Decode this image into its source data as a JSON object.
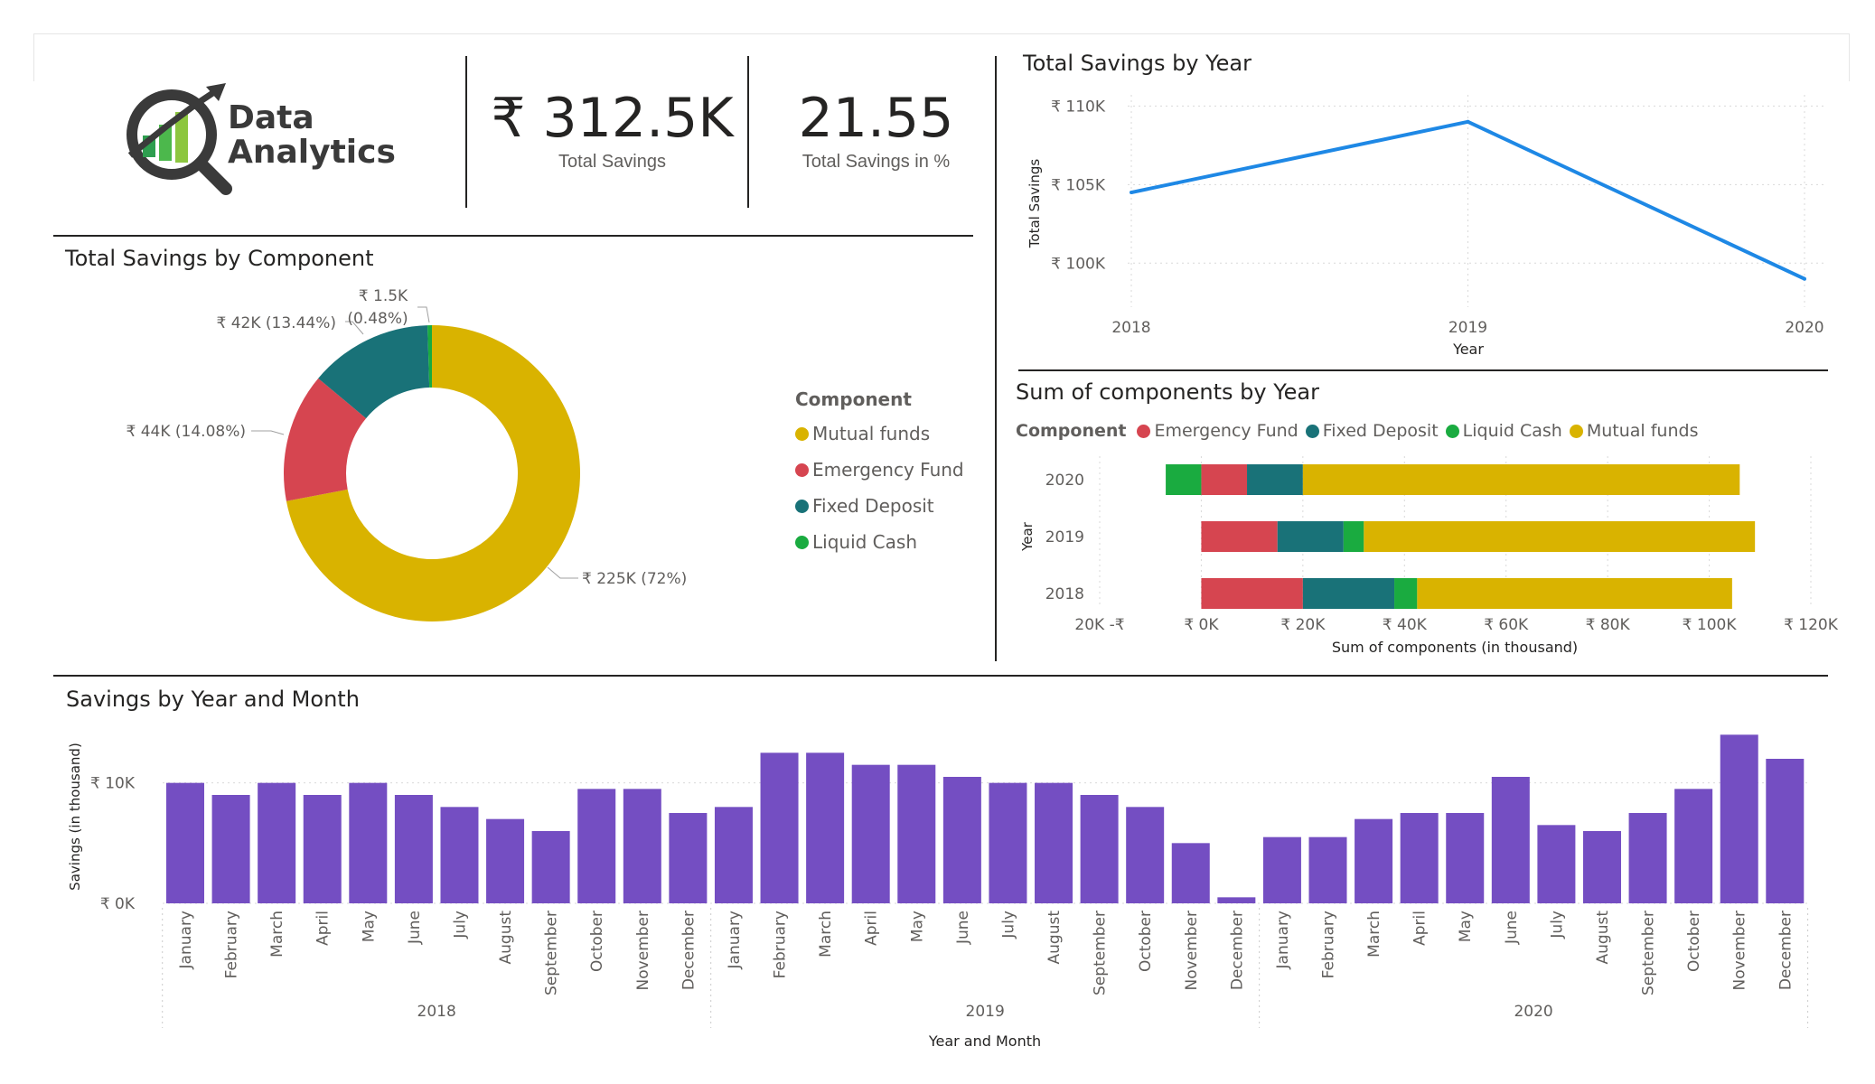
{
  "logo": {
    "line1": "Data",
    "line2": "Analytics"
  },
  "kpis": [
    {
      "value": "₹ 312.5K",
      "label": "Total Savings"
    },
    {
      "value": "21.55",
      "label": "Total Savings in %"
    }
  ],
  "colors": {
    "mutual_funds": "#D9B300",
    "emergency_fund": "#D64550",
    "fixed_deposit": "#197278",
    "liquid_cash": "#1AAB40",
    "line": "#1E88E5",
    "bar": "#744EC2"
  },
  "chart_data": [
    {
      "id": "donut",
      "type": "pie",
      "title": "Total Savings by Component",
      "legend_title": "Component",
      "legend_position": "right",
      "slices": [
        {
          "name": "Mutual funds",
          "value": 225,
          "label": "₹ 225K (72%)",
          "color": "#D9B300"
        },
        {
          "name": "Emergency Fund",
          "value": 44,
          "label": "₹ 44K (14.08%)",
          "color": "#D64550"
        },
        {
          "name": "Fixed Deposit",
          "value": 42,
          "label": "₹ 42K (13.44%)",
          "color": "#197278"
        },
        {
          "name": "Liquid Cash",
          "value": 1.5,
          "label_line1": "₹ 1.5K",
          "label_line2": "(0.48%)",
          "color": "#1AAB40"
        }
      ]
    },
    {
      "id": "line",
      "type": "line",
      "title": "Total Savings by Year",
      "xlabel": "Year",
      "ylabel": "Total Savings",
      "x": [
        "2018",
        "2019",
        "2020"
      ],
      "values": [
        104.5,
        109,
        99
      ],
      "ylim": [
        97.2,
        111
      ],
      "yticks": [
        100,
        105,
        110
      ],
      "ytick_labels": [
        "₹ 100K",
        "₹ 105K",
        "₹ 110K"
      ],
      "grid": true
    },
    {
      "id": "stacked",
      "type": "bar",
      "orientation": "horizontal",
      "stacked": true,
      "title": "Sum of components by Year",
      "legend_title": "Component",
      "legend_position": "top-left",
      "xlabel": "Sum of components (in thousand)",
      "ylabel": "Year",
      "xlim": [
        -20,
        120
      ],
      "xticks": [
        -20,
        0,
        20,
        40,
        60,
        80,
        100,
        120
      ],
      "xtick_labels": [
        "20K -₹",
        "₹ 0K",
        "₹ 20K",
        "₹ 40K",
        "₹ 60K",
        "₹ 80K",
        "₹ 100K",
        "₹ 120K"
      ],
      "categories": [
        "2020",
        "2019",
        "2018"
      ],
      "series": [
        {
          "name": "Emergency Fund",
          "values": [
            9,
            15,
            20
          ],
          "color": "#D64550"
        },
        {
          "name": "Fixed Deposit",
          "values": [
            11,
            13,
            18
          ],
          "color": "#197278"
        },
        {
          "name": "Liquid Cash",
          "values": [
            -7,
            4,
            4.5
          ],
          "color": "#1AAB40"
        },
        {
          "name": "Mutual funds",
          "values": [
            86,
            77,
            62
          ],
          "color": "#D9B300"
        }
      ],
      "grid": true
    },
    {
      "id": "monthly",
      "type": "bar",
      "title": "Savings by Year and Month",
      "xlabel": "Year and Month",
      "ylabel": "Savings (in thousand)",
      "ylim": [
        0,
        15
      ],
      "yticks": [
        0,
        10
      ],
      "ytick_labels": [
        "₹ 0K",
        "₹ 10K"
      ],
      "months": [
        "January",
        "February",
        "March",
        "April",
        "May",
        "June",
        "July",
        "August",
        "September",
        "October",
        "November",
        "December"
      ],
      "years": [
        {
          "year": "2018",
          "values": [
            10,
            9,
            10,
            9,
            10,
            9,
            8,
            7,
            6,
            9.5,
            9.5,
            7.5
          ]
        },
        {
          "year": "2019",
          "values": [
            8,
            12.5,
            12.5,
            11.5,
            11.5,
            10.5,
            10,
            10,
            9,
            8,
            5,
            0.5
          ]
        },
        {
          "year": "2020",
          "values": [
            5.5,
            5.5,
            7,
            7.5,
            7.5,
            10.5,
            6.5,
            6,
            7.5,
            9.5,
            14,
            12
          ]
        }
      ],
      "grid": true
    }
  ]
}
